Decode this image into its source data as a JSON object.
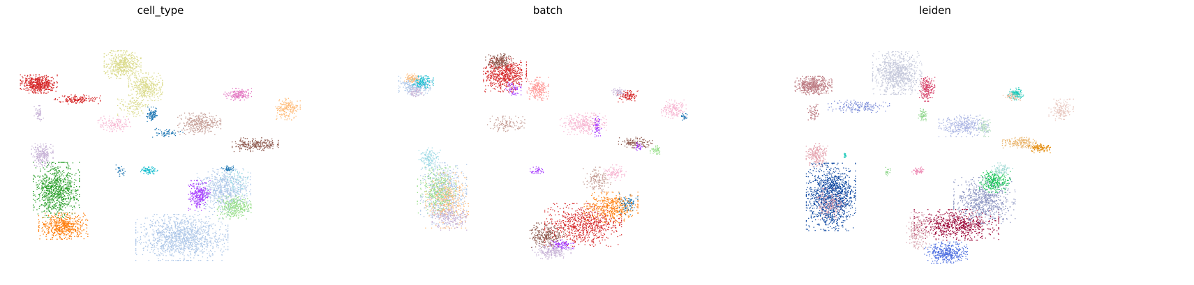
{
  "chart_data": [
    {
      "type": "scatter",
      "title": "cell_type",
      "xlabel": "",
      "ylabel": "",
      "grid": false,
      "axes_visible": false,
      "legend": "none",
      "clusters": [
        {
          "color": "#d62728",
          "cx": 55,
          "cy": 88,
          "rx": 24,
          "ry": 12,
          "n": 520
        },
        {
          "color": "#d62728",
          "cx": 110,
          "cy": 110,
          "rx": 30,
          "ry": 6,
          "n": 160
        },
        {
          "color": "#dbdb8d",
          "cx": 175,
          "cy": 60,
          "rx": 24,
          "ry": 18,
          "n": 500
        },
        {
          "color": "#dbdb8d",
          "cx": 208,
          "cy": 92,
          "rx": 22,
          "ry": 18,
          "n": 380
        },
        {
          "color": "#dbdb8d",
          "cx": 190,
          "cy": 120,
          "rx": 20,
          "ry": 14,
          "n": 120
        },
        {
          "color": "#1f77b4",
          "cx": 218,
          "cy": 132,
          "rx": 8,
          "ry": 10,
          "n": 90
        },
        {
          "color": "#1f77b4",
          "cx": 240,
          "cy": 158,
          "rx": 20,
          "ry": 6,
          "n": 60
        },
        {
          "color": "#c49c94",
          "cx": 285,
          "cy": 145,
          "rx": 28,
          "ry": 14,
          "n": 330
        },
        {
          "color": "#e377c2",
          "cx": 340,
          "cy": 103,
          "rx": 18,
          "ry": 8,
          "n": 160
        },
        {
          "color": "#ffbb78",
          "cx": 412,
          "cy": 124,
          "rx": 16,
          "ry": 14,
          "n": 190
        },
        {
          "color": "#8c564b",
          "cx": 365,
          "cy": 175,
          "rx": 30,
          "ry": 9,
          "n": 240
        },
        {
          "color": "#f7b6d2",
          "cx": 165,
          "cy": 145,
          "rx": 25,
          "ry": 10,
          "n": 140
        },
        {
          "color": "#c5b0d5",
          "cx": 60,
          "cy": 190,
          "rx": 14,
          "ry": 15,
          "n": 220
        },
        {
          "color": "#c5b0d5",
          "cx": 55,
          "cy": 130,
          "rx": 6,
          "ry": 10,
          "n": 50
        },
        {
          "color": "#2ca02c",
          "cx": 80,
          "cy": 240,
          "rx": 30,
          "ry": 36,
          "n": 900
        },
        {
          "color": "#ff7f0e",
          "cx": 90,
          "cy": 292,
          "rx": 32,
          "ry": 17,
          "n": 560
        },
        {
          "color": "#17becf",
          "cx": 212,
          "cy": 212,
          "rx": 12,
          "ry": 5,
          "n": 80
        },
        {
          "color": "#1f77b4",
          "cx": 172,
          "cy": 212,
          "rx": 6,
          "ry": 8,
          "n": 30
        },
        {
          "color": "#aec7e8",
          "cx": 260,
          "cy": 308,
          "rx": 60,
          "ry": 30,
          "n": 1300
        },
        {
          "color": "#aec7e8",
          "cx": 320,
          "cy": 240,
          "rx": 35,
          "ry": 28,
          "n": 700
        },
        {
          "color": "#9edae5",
          "cx": 335,
          "cy": 225,
          "rx": 18,
          "ry": 20,
          "n": 100
        },
        {
          "color": "#a63aff",
          "cx": 285,
          "cy": 248,
          "rx": 14,
          "ry": 20,
          "n": 260
        },
        {
          "color": "#98df8a",
          "cx": 335,
          "cy": 265,
          "rx": 22,
          "ry": 15,
          "n": 320
        },
        {
          "color": "#1f77b4",
          "cx": 325,
          "cy": 210,
          "rx": 8,
          "ry": 4,
          "n": 40
        }
      ]
    },
    {
      "type": "scatter",
      "title": "batch",
      "xlabel": "",
      "ylabel": "",
      "grid": false,
      "axes_visible": false,
      "legend": "none",
      "clusters": [
        {
          "color": "#d62728",
          "cx": 168,
          "cy": 75,
          "rx": 28,
          "ry": 22,
          "n": 600
        },
        {
          "color": "#8c564b",
          "cx": 160,
          "cy": 55,
          "rx": 18,
          "ry": 10,
          "n": 200
        },
        {
          "color": "#a63aff",
          "cx": 180,
          "cy": 95,
          "rx": 10,
          "ry": 8,
          "n": 60
        },
        {
          "color": "#ff9896",
          "cx": 215,
          "cy": 95,
          "rx": 14,
          "ry": 15,
          "n": 220
        },
        {
          "color": "#aec7e8",
          "cx": 40,
          "cy": 90,
          "rx": 22,
          "ry": 12,
          "n": 260
        },
        {
          "color": "#17becf",
          "cx": 50,
          "cy": 85,
          "rx": 14,
          "ry": 8,
          "n": 120
        },
        {
          "color": "#ffbb78",
          "cx": 35,
          "cy": 80,
          "rx": 10,
          "ry": 6,
          "n": 80
        },
        {
          "color": "#c5b0d5",
          "cx": 40,
          "cy": 100,
          "rx": 10,
          "ry": 6,
          "n": 60
        },
        {
          "color": "#f7b6d2",
          "cx": 280,
          "cy": 145,
          "rx": 30,
          "ry": 14,
          "n": 320
        },
        {
          "color": "#c49c94",
          "cx": 170,
          "cy": 145,
          "rx": 25,
          "ry": 10,
          "n": 120
        },
        {
          "color": "#a63aff",
          "cx": 300,
          "cy": 150,
          "rx": 6,
          "ry": 14,
          "n": 60
        },
        {
          "color": "#d62728",
          "cx": 345,
          "cy": 105,
          "rx": 14,
          "ry": 8,
          "n": 100
        },
        {
          "color": "#c5b0d5",
          "cx": 332,
          "cy": 100,
          "rx": 10,
          "ry": 6,
          "n": 60
        },
        {
          "color": "#f7b6d2",
          "cx": 410,
          "cy": 124,
          "rx": 16,
          "ry": 12,
          "n": 160
        },
        {
          "color": "#1f77b4",
          "cx": 425,
          "cy": 135,
          "rx": 5,
          "ry": 5,
          "n": 25
        },
        {
          "color": "#8c564b",
          "cx": 355,
          "cy": 172,
          "rx": 22,
          "ry": 7,
          "n": 120
        },
        {
          "color": "#98df8a",
          "cx": 385,
          "cy": 182,
          "rx": 8,
          "ry": 6,
          "n": 50
        },
        {
          "color": "#a63aff",
          "cx": 360,
          "cy": 178,
          "rx": 6,
          "ry": 6,
          "n": 30
        },
        {
          "color": "#aec7e8",
          "cx": 80,
          "cy": 245,
          "rx": 30,
          "ry": 40,
          "n": 650
        },
        {
          "color": "#ffbb78",
          "cx": 85,
          "cy": 255,
          "rx": 28,
          "ry": 36,
          "n": 420
        },
        {
          "color": "#98df8a",
          "cx": 70,
          "cy": 240,
          "rx": 25,
          "ry": 30,
          "n": 300
        },
        {
          "color": "#c5b0d5",
          "cx": 90,
          "cy": 280,
          "rx": 24,
          "ry": 16,
          "n": 200
        },
        {
          "color": "#9edae5",
          "cx": 60,
          "cy": 195,
          "rx": 14,
          "ry": 14,
          "n": 150
        },
        {
          "color": "#a63aff",
          "cx": 215,
          "cy": 212,
          "rx": 10,
          "ry": 5,
          "n": 40
        },
        {
          "color": "#d62728",
          "cx": 280,
          "cy": 290,
          "rx": 50,
          "ry": 28,
          "n": 750
        },
        {
          "color": "#ff7f0e",
          "cx": 320,
          "cy": 265,
          "rx": 35,
          "ry": 20,
          "n": 450
        },
        {
          "color": "#8c564b",
          "cx": 228,
          "cy": 305,
          "rx": 22,
          "ry": 16,
          "n": 260
        },
        {
          "color": "#c5b0d5",
          "cx": 235,
          "cy": 328,
          "rx": 25,
          "ry": 10,
          "n": 200
        },
        {
          "color": "#a63aff",
          "cx": 250,
          "cy": 318,
          "rx": 15,
          "ry": 6,
          "n": 90
        },
        {
          "color": "#c49c94",
          "cx": 300,
          "cy": 225,
          "rx": 18,
          "ry": 16,
          "n": 150
        },
        {
          "color": "#1f77b4",
          "cx": 345,
          "cy": 260,
          "rx": 12,
          "ry": 14,
          "n": 80
        },
        {
          "color": "#f7b6d2",
          "cx": 325,
          "cy": 215,
          "rx": 15,
          "ry": 10,
          "n": 100
        }
      ]
    },
    {
      "type": "scatter",
      "title": "leiden",
      "xlabel": "",
      "ylabel": "",
      "grid": false,
      "axes_visible": false,
      "legend": "none",
      "clusters": [
        {
          "color": "#bc7b82",
          "cx": 55,
          "cy": 90,
          "rx": 24,
          "ry": 12,
          "n": 480
        },
        {
          "color": "#bc7b82",
          "cx": 55,
          "cy": 130,
          "rx": 8,
          "ry": 12,
          "n": 60
        },
        {
          "color": "#c5c9db",
          "cx": 175,
          "cy": 72,
          "rx": 32,
          "ry": 28,
          "n": 900
        },
        {
          "color": "#d6426a",
          "cx": 218,
          "cy": 95,
          "rx": 10,
          "ry": 16,
          "n": 200
        },
        {
          "color": "#8fd68c",
          "cx": 212,
          "cy": 132,
          "rx": 6,
          "ry": 8,
          "n": 60
        },
        {
          "color": "#7e8fd9",
          "cx": 120,
          "cy": 120,
          "rx": 40,
          "ry": 8,
          "n": 180
        },
        {
          "color": "#aab5e3",
          "cx": 270,
          "cy": 148,
          "rx": 32,
          "ry": 14,
          "n": 350
        },
        {
          "color": "#b5dcc0",
          "cx": 300,
          "cy": 150,
          "rx": 8,
          "ry": 12,
          "n": 80
        },
        {
          "color": "#1bc9b8",
          "cx": 345,
          "cy": 102,
          "rx": 10,
          "ry": 8,
          "n": 100
        },
        {
          "color": "#e8ba9f",
          "cx": 340,
          "cy": 106,
          "rx": 12,
          "ry": 5,
          "n": 50
        },
        {
          "color": "#e8c8c0",
          "cx": 410,
          "cy": 125,
          "rx": 16,
          "ry": 14,
          "n": 160
        },
        {
          "color": "#e8b064",
          "cx": 350,
          "cy": 172,
          "rx": 22,
          "ry": 7,
          "n": 150
        },
        {
          "color": "#e38d10",
          "cx": 380,
          "cy": 180,
          "rx": 15,
          "ry": 6,
          "n": 110
        },
        {
          "color": "#e5a5b0",
          "cx": 60,
          "cy": 190,
          "rx": 14,
          "ry": 15,
          "n": 220
        },
        {
          "color": "#0d47a1",
          "cx": 80,
          "cy": 250,
          "rx": 32,
          "ry": 44,
          "n": 1300
        },
        {
          "color": "#e5a5b0",
          "cx": 80,
          "cy": 260,
          "rx": 18,
          "ry": 20,
          "n": 180
        },
        {
          "color": "#1bc9b8",
          "cx": 100,
          "cy": 190,
          "rx": 4,
          "ry": 3,
          "n": 15
        },
        {
          "color": "#8fd68c",
          "cx": 162,
          "cy": 213,
          "rx": 4,
          "ry": 6,
          "n": 20
        },
        {
          "color": "#ee8db6",
          "cx": 205,
          "cy": 212,
          "rx": 10,
          "ry": 5,
          "n": 60
        },
        {
          "color": "#990033",
          "cx": 260,
          "cy": 290,
          "rx": 55,
          "ry": 20,
          "n": 700
        },
        {
          "color": "#d9a7b2",
          "cx": 205,
          "cy": 300,
          "rx": 15,
          "ry": 25,
          "n": 200
        },
        {
          "color": "#4d6ee0",
          "cx": 245,
          "cy": 330,
          "rx": 28,
          "ry": 14,
          "n": 400
        },
        {
          "color": "#8a93c1",
          "cx": 300,
          "cy": 255,
          "rx": 40,
          "ry": 30,
          "n": 700
        },
        {
          "color": "#14c454",
          "cx": 315,
          "cy": 228,
          "rx": 20,
          "ry": 14,
          "n": 260
        },
        {
          "color": "#9fd9d3",
          "cx": 325,
          "cy": 210,
          "rx": 14,
          "ry": 8,
          "n": 80
        }
      ]
    }
  ]
}
